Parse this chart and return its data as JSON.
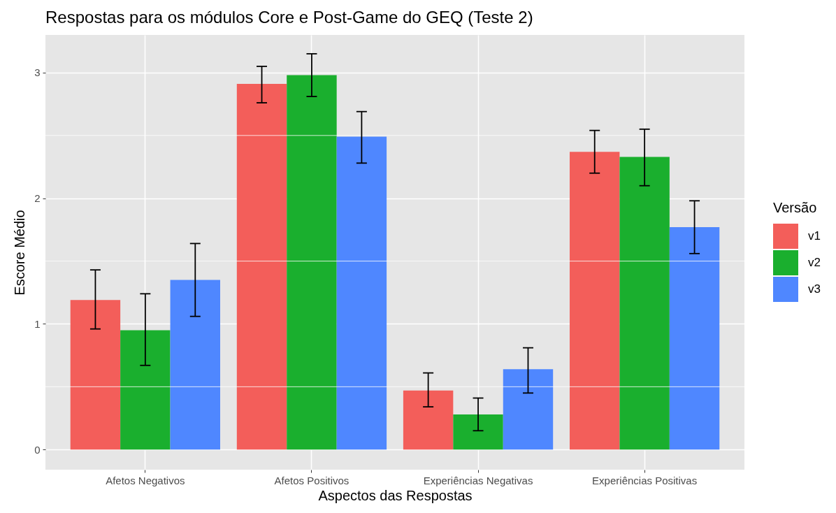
{
  "chart_data": {
    "type": "bar",
    "title": "Respostas para os módulos Core e Post-Game do GEQ (Teste 2)",
    "xlabel": "Aspectos das Respostas",
    "ylabel": "Escore Médio",
    "legend_title": "Versão",
    "categories": [
      "Afetos Negativos",
      "Afetos Positivos",
      "Experiências Negativas",
      "Experiências Positivas"
    ],
    "series": [
      {
        "name": "v1",
        "color": "#f35e5a",
        "values": [
          1.19,
          2.91,
          0.47,
          2.37
        ],
        "errors": [
          [
            0.96,
            1.43
          ],
          [
            2.76,
            3.05
          ],
          [
            0.34,
            0.61
          ],
          [
            2.2,
            2.54
          ]
        ]
      },
      {
        "name": "v2",
        "color": "#1aaf2e",
        "values": [
          0.95,
          2.98,
          0.28,
          2.33
        ],
        "errors": [
          [
            0.67,
            1.24
          ],
          [
            2.81,
            3.15
          ],
          [
            0.15,
            0.41
          ],
          [
            2.1,
            2.55
          ]
        ]
      },
      {
        "name": "v3",
        "color": "#4f87ff",
        "values": [
          1.35,
          2.49,
          0.64,
          1.77
        ],
        "errors": [
          [
            1.06,
            1.64
          ],
          [
            2.28,
            2.69
          ],
          [
            0.45,
            0.81
          ],
          [
            1.56,
            1.98
          ]
        ]
      }
    ],
    "ylim": [
      -0.16,
      3.3
    ],
    "yticks": [
      0,
      1,
      2,
      3
    ],
    "grid": true,
    "legend": "right"
  }
}
